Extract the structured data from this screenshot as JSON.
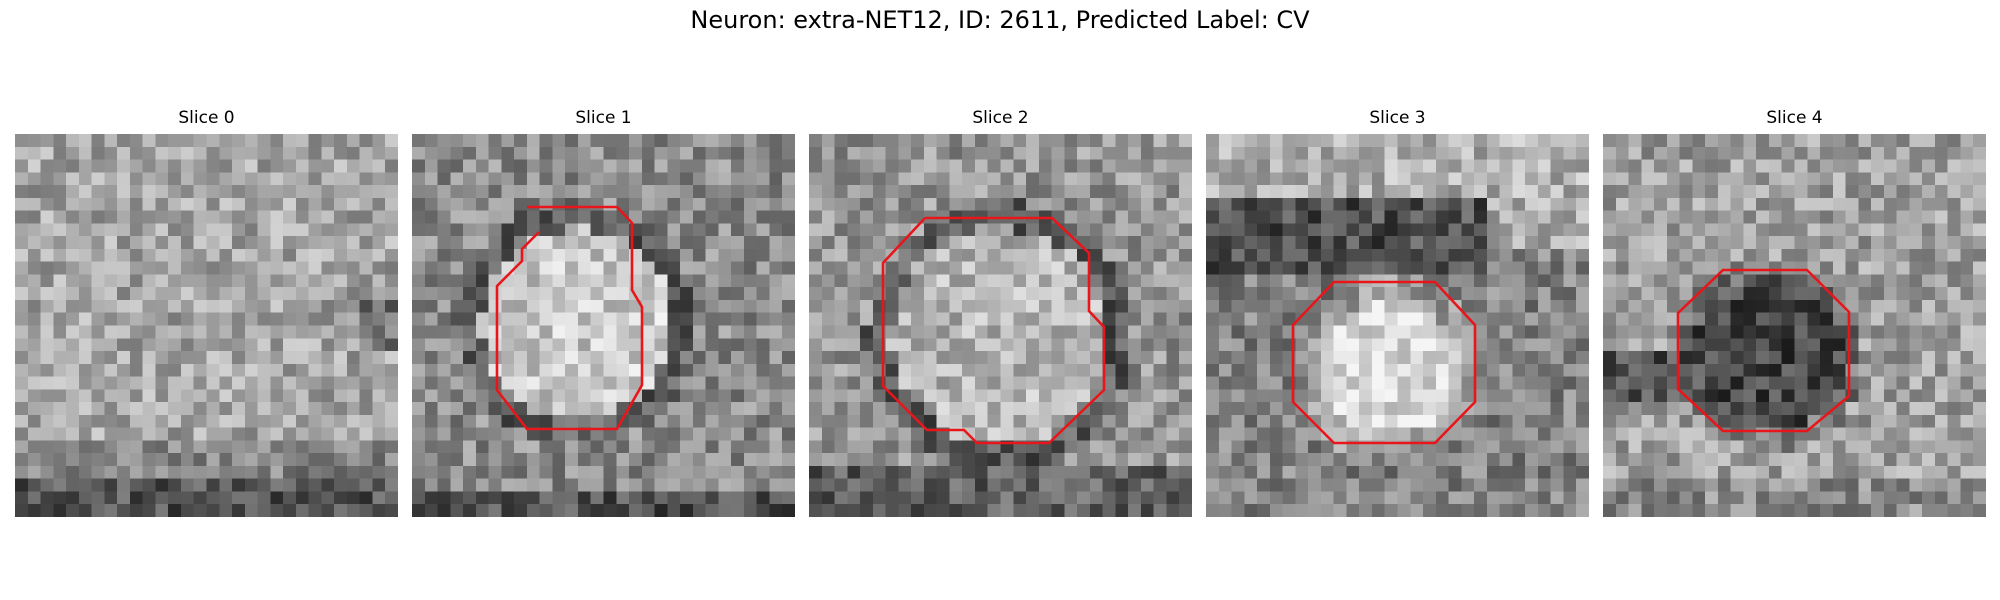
{
  "figure": {
    "title": "Neuron: extra-NET12, ID: 2611, Predicted Label: CV"
  },
  "panels": [
    {
      "title": "Slice 0",
      "has_contour": false
    },
    {
      "title": "Slice 1",
      "has_contour": true
    },
    {
      "title": "Slice 2",
      "has_contour": true
    },
    {
      "title": "Slice 3",
      "has_contour": true
    },
    {
      "title": "Slice 4",
      "has_contour": true
    }
  ],
  "colors": {
    "contour": "#e8161b",
    "colormap": "gray"
  }
}
